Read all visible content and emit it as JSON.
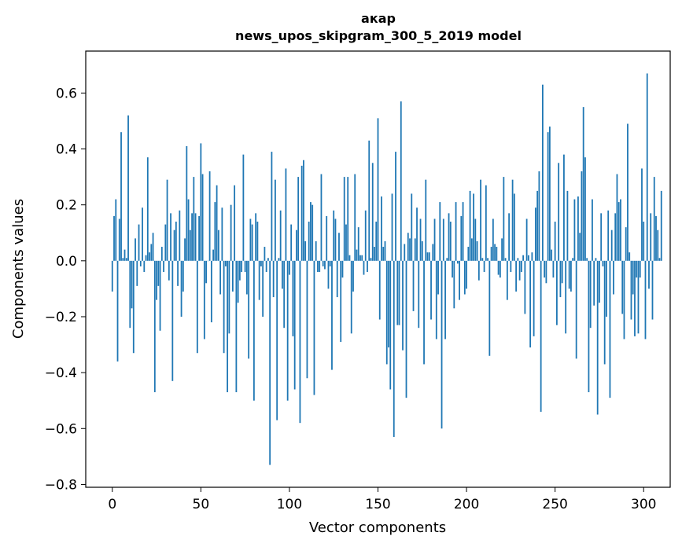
{
  "chart_data": {
    "type": "bar",
    "title": "акар",
    "subtitle": "news_upos_skipgram_300_5_2019 model",
    "xlabel": "Vector components",
    "ylabel": "Components values",
    "xlim": [
      -15,
      315
    ],
    "ylim": [
      -0.81,
      0.75
    ],
    "x_ticks": [
      0,
      50,
      100,
      150,
      200,
      250,
      300
    ],
    "x_tick_labels": [
      "0",
      "50",
      "100",
      "150",
      "200",
      "250",
      "300"
    ],
    "y_ticks": [
      -0.8,
      -0.6,
      -0.4,
      -0.2,
      0.0,
      0.2,
      0.4,
      0.6
    ],
    "y_tick_labels": [
      "−0.8",
      "−0.6",
      "−0.4",
      "−0.2",
      "0.0",
      "0.2",
      "0.4",
      "0.6"
    ],
    "grid": false,
    "bar_color": "#1f77b4",
    "values": [
      -0.11,
      0.16,
      0.22,
      -0.36,
      0.15,
      0.46,
      0.01,
      0.04,
      0.01,
      0.52,
      -0.24,
      -0.17,
      -0.33,
      0.08,
      -0.09,
      0.13,
      -0.02,
      0.19,
      -0.04,
      0.02,
      0.37,
      0.03,
      0.06,
      0.1,
      -0.47,
      -0.14,
      -0.09,
      -0.25,
      0.05,
      -0.04,
      0.13,
      0.29,
      -0.07,
      0.17,
      -0.43,
      0.11,
      0.14,
      -0.09,
      0.18,
      -0.2,
      -0.11,
      0.08,
      0.41,
      0.22,
      0.11,
      0.17,
      0.3,
      0.17,
      -0.33,
      0.16,
      0.42,
      0.31,
      -0.28,
      -0.08,
      0.0,
      0.32,
      -0.22,
      0.04,
      0.21,
      0.27,
      0.11,
      -0.12,
      0.19,
      -0.33,
      -0.02,
      -0.47,
      -0.26,
      0.2,
      -0.11,
      0.27,
      -0.47,
      -0.15,
      -0.07,
      -0.04,
      0.38,
      -0.04,
      -0.12,
      -0.35,
      0.15,
      0.13,
      -0.5,
      0.17,
      0.14,
      -0.14,
      -0.02,
      -0.2,
      0.05,
      -0.04,
      0.01,
      -0.73,
      0.39,
      -0.13,
      0.29,
      -0.57,
      0.01,
      0.18,
      -0.1,
      -0.24,
      0.33,
      -0.5,
      -0.05,
      0.13,
      -0.27,
      -0.46,
      0.11,
      0.3,
      -0.58,
      0.34,
      0.36,
      0.07,
      -0.42,
      0.14,
      0.21,
      0.2,
      -0.48,
      0.07,
      -0.04,
      -0.04,
      0.31,
      -0.02,
      -0.03,
      0.16,
      -0.1,
      -0.02,
      -0.39,
      0.18,
      0.15,
      -0.13,
      0.1,
      -0.29,
      -0.06,
      0.3,
      0.13,
      0.3,
      0.02,
      -0.26,
      -0.11,
      0.31,
      0.04,
      0.12,
      0.02,
      0.02,
      -0.05,
      0.18,
      -0.04,
      0.43,
      0.01,
      0.35,
      0.05,
      0.14,
      0.51,
      -0.21,
      0.23,
      0.05,
      0.07,
      -0.37,
      -0.31,
      -0.46,
      0.24,
      -0.63,
      0.39,
      -0.23,
      -0.23,
      0.57,
      -0.32,
      0.06,
      -0.49,
      0.1,
      0.08,
      0.24,
      -0.18,
      0.08,
      0.19,
      -0.24,
      0.15,
      0.07,
      -0.37,
      0.29,
      0.03,
      0.03,
      -0.21,
      0.06,
      0.15,
      -0.28,
      -0.12,
      0.21,
      -0.6,
      0.15,
      -0.28,
      0.01,
      0.17,
      0.14,
      -0.06,
      -0.17,
      0.21,
      -0.01,
      -0.14,
      0.16,
      0.21,
      -0.12,
      -0.1,
      0.05,
      0.25,
      0.08,
      0.24,
      0.15,
      0.07,
      -0.07,
      0.29,
      0.01,
      -0.04,
      0.27,
      0.01,
      -0.34,
      0.05,
      0.15,
      0.06,
      0.05,
      -0.05,
      -0.06,
      0.08,
      0.3,
      0.01,
      -0.14,
      0.17,
      -0.04,
      0.29,
      0.24,
      -0.11,
      0.01,
      -0.07,
      -0.04,
      0.02,
      -0.19,
      0.15,
      0.02,
      -0.31,
      0.03,
      -0.27,
      0.19,
      0.25,
      0.32,
      -0.54,
      0.63,
      -0.06,
      -0.08,
      0.46,
      0.48,
      0.04,
      -0.06,
      0.14,
      -0.23,
      0.35,
      -0.13,
      -0.08,
      0.38,
      -0.26,
      0.25,
      -0.1,
      -0.11,
      0.01,
      0.22,
      -0.35,
      0.23,
      0.1,
      0.32,
      0.55,
      0.37,
      0.01,
      -0.47,
      -0.24,
      0.22,
      -0.16,
      0.01,
      -0.55,
      -0.15,
      0.17,
      -0.02,
      -0.37,
      -0.2,
      0.18,
      -0.49,
      0.11,
      -0.12,
      0.17,
      0.31,
      0.21,
      0.22,
      -0.19,
      -0.28,
      0.12,
      0.49,
      0.03,
      -0.21,
      -0.12,
      -0.27,
      -0.06,
      -0.26,
      -0.06,
      0.33,
      0.14,
      -0.28,
      0.67,
      -0.1,
      0.17,
      -0.21,
      0.3,
      0.16,
      0.11,
      0.01,
      0.25
    ]
  }
}
